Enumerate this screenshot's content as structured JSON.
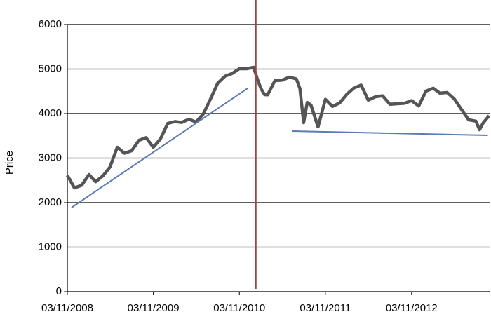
{
  "chart_data": {
    "type": "line",
    "ylabel": "Price",
    "x": [
      "03/11/2008",
      "03/12/2008",
      "03/01/2009",
      "03/02/2009",
      "03/03/2009",
      "03/04/2009",
      "03/05/2009",
      "03/06/2009",
      "03/07/2009",
      "03/08/2009",
      "03/09/2009",
      "03/10/2009",
      "03/11/2009",
      "03/12/2009",
      "03/01/2010",
      "03/02/2010",
      "03/03/2010",
      "03/04/2010",
      "03/05/2010",
      "03/06/2010",
      "03/07/2010",
      "03/08/2010",
      "03/09/2010",
      "03/10/2010",
      "03/11/2010",
      "03/12/2010",
      "03/01/2011",
      "18/01/2011",
      "03/02/2011",
      "18/02/2011",
      "03/03/2011",
      "03/04/2011",
      "03/05/2011",
      "03/06/2011",
      "03/07/2011",
      "18/07/2011",
      "03/08/2011",
      "18/08/2011",
      "03/09/2011",
      "03/10/2011",
      "18/10/2011",
      "03/11/2011",
      "03/12/2011",
      "03/01/2012",
      "03/02/2012",
      "03/03/2012",
      "03/04/2012",
      "03/05/2012",
      "03/06/2012",
      "03/07/2012",
      "03/08/2012",
      "03/09/2012",
      "03/10/2012",
      "03/11/2012",
      "03/12/2012",
      "03/01/2013",
      "03/02/2013",
      "03/03/2013",
      "03/04/2013",
      "03/05/2013",
      "03/06/2013",
      "03/07/2013",
      "03/08/2013",
      "18/08/2013",
      "03/09/2013",
      "28/09/2013"
    ],
    "series": [
      {
        "color": "#555555",
        "values": [
          2614,
          2331,
          2390,
          2630,
          2470,
          2600,
          2800,
          3244,
          3110,
          3165,
          3400,
          3460,
          3244,
          3430,
          3780,
          3820,
          3800,
          3874,
          3810,
          3990,
          4320,
          4680,
          4840,
          4900,
          5008,
          5008,
          5039,
          4780,
          4560,
          4425,
          4420,
          4740,
          4750,
          4819,
          4780,
          4560,
          3795,
          4250,
          4189,
          3700,
          4000,
          4320,
          4160,
          4240,
          4440,
          4575,
          4640,
          4300,
          4378,
          4400,
          4210,
          4220,
          4230,
          4290,
          4170,
          4504,
          4570,
          4460,
          4472,
          4330,
          4090,
          3860,
          3830,
          3638,
          3790,
          3953
        ]
      }
    ],
    "trendlines": [
      {
        "color": "#5b7bb5",
        "x": [
          "21/11/2008",
          "08/12/2010"
        ],
        "values": [
          1890,
          4567
        ]
      },
      {
        "color": "#5b7bb5",
        "x": [
          "14/06/2011",
          "23/09/2013"
        ],
        "values": [
          3606,
          3512
        ]
      }
    ],
    "vline": {
      "x": "12/01/2011",
      "color": "#a0414a"
    },
    "xlim": [
      "03/11/2008",
      "30/09/2013"
    ],
    "xticks": [
      "03/11/2008",
      "03/11/2009",
      "03/11/2010",
      "03/11/2011",
      "03/11/2012"
    ],
    "ylim": [
      0,
      6000
    ],
    "yticks": [
      0,
      1000,
      2000,
      3000,
      4000,
      5000,
      6000
    ],
    "grid": true
  }
}
